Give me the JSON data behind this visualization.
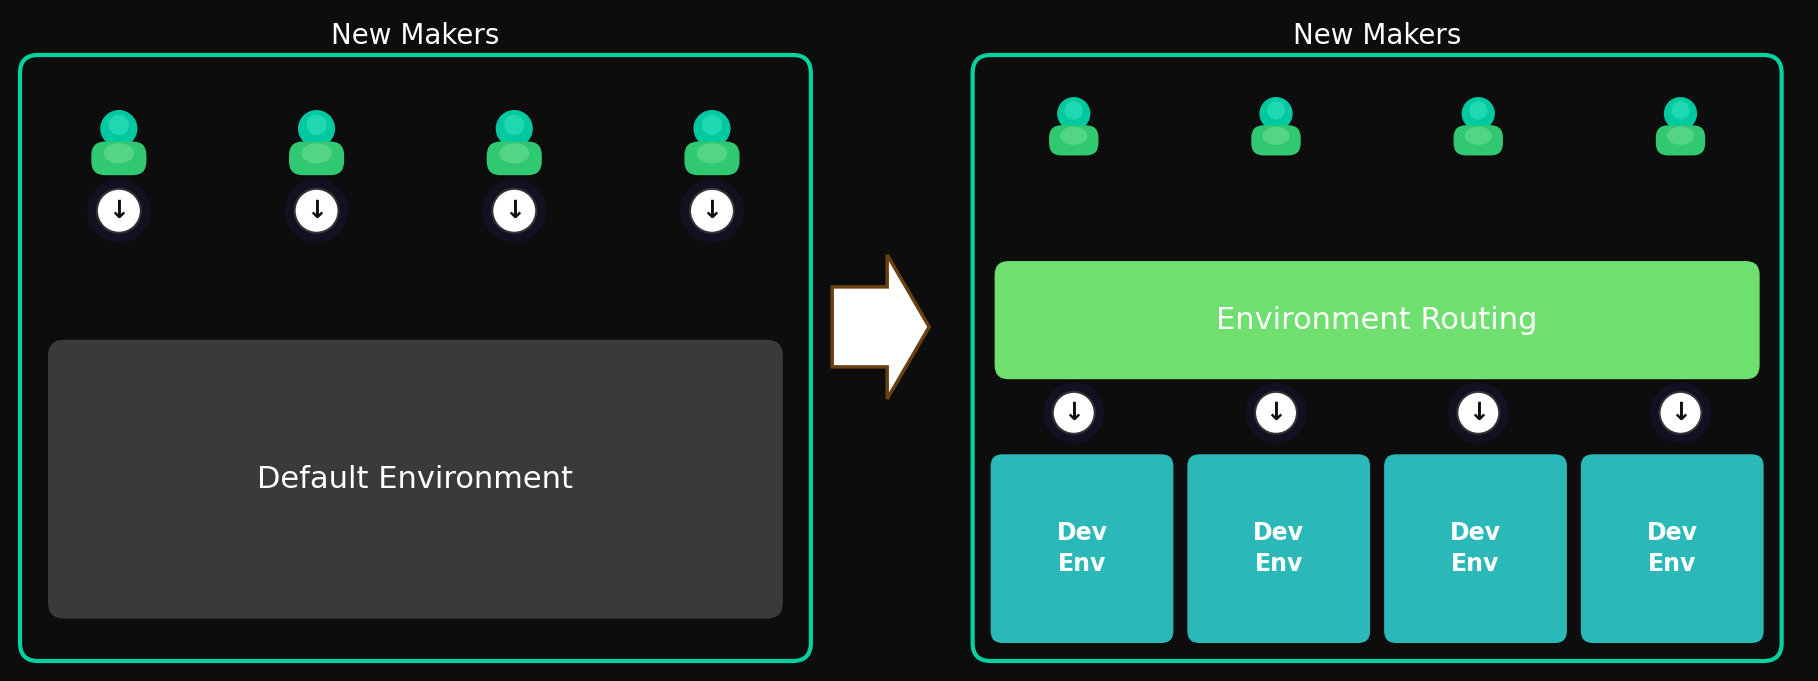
{
  "bg_color": "#0d0d0d",
  "border_color": "#00d4a0",
  "default_env_color": "#3a3a3a",
  "env_routing_color": "#6fdf6f",
  "dev_env_color": "#2ab8b8",
  "person_head_color": "#00c8a0",
  "person_body_color": "#30c870",
  "person_glow_color": "#a0ffa0",
  "title_text": "New Makers",
  "title_color": "#ffffff",
  "title_fontsize": 20,
  "default_env_text": "Default Environment",
  "env_routing_text": "Environment Routing",
  "dev_env_text": "Dev\nEnv",
  "num_makers": 4,
  "figw": 18.18,
  "figh": 6.81,
  "dpi": 100
}
